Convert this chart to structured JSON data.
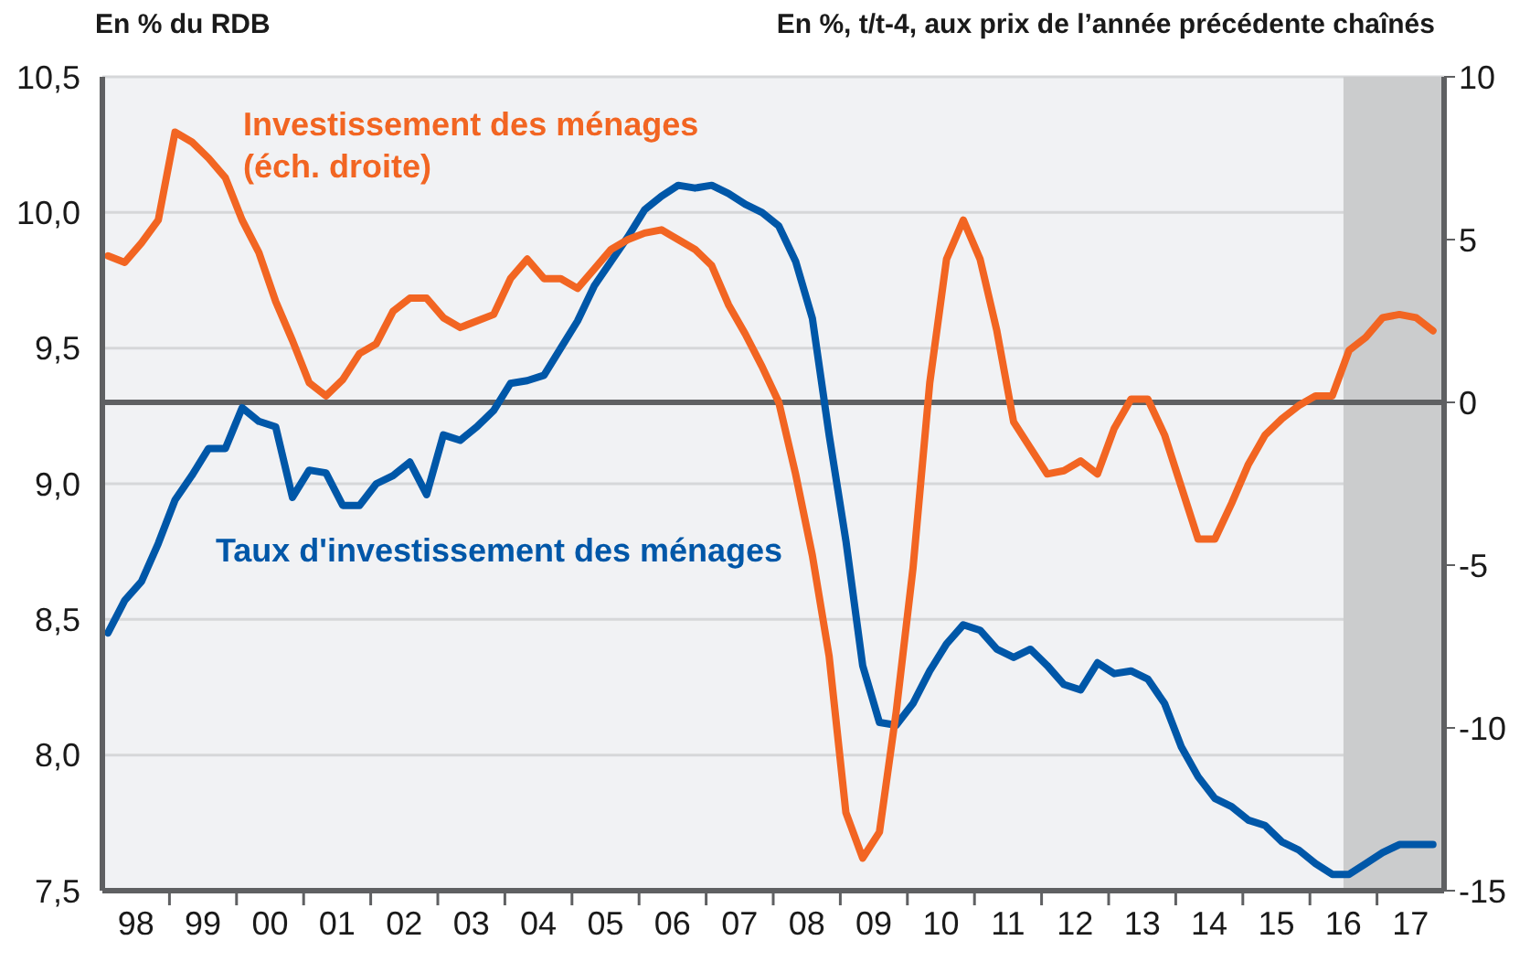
{
  "chart_data": {
    "type": "line",
    "ylabel": "En % du RDB",
    "y2label": "En %, t/t-4, aux prix de l’année précédente chaînés",
    "x": [
      "1998-02",
      "1998-05",
      "1998-08",
      "1998-11",
      "1999-02",
      "1999-05",
      "1999-08",
      "1999-11",
      "2000-02",
      "2000-05",
      "2000-08",
      "2000-11",
      "2001-02",
      "2001-05",
      "2001-08",
      "2001-11",
      "2002-02",
      "2002-05",
      "2002-08",
      "2002-11",
      "2003-02",
      "2003-05",
      "2003-08",
      "2003-11",
      "2004-02",
      "2004-05",
      "2004-08",
      "2004-11",
      "2005-02",
      "2005-05",
      "2005-08",
      "2005-11",
      "2006-02",
      "2006-05",
      "2006-08",
      "2006-11",
      "2007-02",
      "2007-05",
      "2007-08",
      "2007-11",
      "2008-02",
      "2008-05",
      "2008-08",
      "2008-11",
      "2009-02",
      "2009-05",
      "2009-08",
      "2009-11",
      "2010-02",
      "2010-05",
      "2010-08",
      "2010-11",
      "2011-02",
      "2011-05",
      "2011-08",
      "2011-11",
      "2012-02",
      "2012-05",
      "2012-08",
      "2012-11",
      "2013-02",
      "2013-05",
      "2013-08",
      "2013-11",
      "2014-02",
      "2014-05",
      "2014-08",
      "2014-11",
      "2015-02",
      "2015-05",
      "2015-08",
      "2015-11",
      "2016-02",
      "2016-05",
      "2016-08",
      "2016-11",
      "2017-02",
      "2017-05",
      "2017-08",
      "2017-11"
    ],
    "series": [
      {
        "name": "Taux d'investissement des ménages",
        "color": "#0057a8",
        "values": [
          8.45,
          8.57,
          8.64,
          8.78,
          8.94,
          9.03,
          9.13,
          9.13,
          9.28,
          9.23,
          9.21,
          8.95,
          9.05,
          9.04,
          8.92,
          8.92,
          9.0,
          9.03,
          9.08,
          8.96,
          9.18,
          9.16,
          9.21,
          9.27,
          9.37,
          9.38,
          9.4,
          9.5,
          9.6,
          9.73,
          9.82,
          9.91,
          10.01,
          10.06,
          10.1,
          10.09,
          10.1,
          10.07,
          10.03,
          10.0,
          9.95,
          9.82,
          9.61,
          9.18,
          8.79,
          8.33,
          8.12,
          8.11,
          8.19,
          8.31,
          8.41,
          8.48,
          8.46,
          8.39,
          8.36,
          8.39,
          8.33,
          8.26,
          8.24,
          8.34,
          8.3,
          8.31,
          8.28,
          8.19,
          8.03,
          7.92,
          7.84,
          7.81,
          7.76,
          7.74,
          7.68,
          7.65,
          7.6,
          7.56,
          7.56,
          7.6,
          7.64,
          7.67,
          7.67,
          7.67
        ]
      },
      {
        "name": "Investissement des ménages (éch. droite)",
        "color": "#f26522",
        "axis": "y2",
        "values": [
          4.5,
          4.3,
          4.9,
          5.6,
          8.3,
          8.0,
          7.5,
          6.9,
          5.6,
          4.6,
          3.1,
          1.9,
          0.6,
          0.2,
          0.7,
          1.5,
          1.8,
          2.8,
          3.2,
          3.2,
          2.6,
          2.3,
          2.5,
          2.7,
          3.8,
          4.4,
          3.8,
          3.8,
          3.5,
          4.1,
          4.7,
          5.0,
          5.2,
          5.3,
          5.0,
          4.7,
          4.2,
          3.0,
          2.1,
          1.1,
          0.0,
          -2.2,
          -4.7,
          -7.8,
          -12.6,
          -14.0,
          -13.2,
          -9.5,
          -5.1,
          0.6,
          4.4,
          5.6,
          4.4,
          2.2,
          -0.6,
          -1.4,
          -2.2,
          -2.1,
          -1.8,
          -2.2,
          -0.8,
          0.1,
          0.1,
          -1.0,
          -2.6,
          -4.2,
          -4.2,
          -3.1,
          -1.9,
          -1.0,
          -0.5,
          -0.1,
          0.2,
          0.2,
          1.6,
          2.0,
          2.6,
          2.7,
          2.6,
          2.2
        ]
      }
    ],
    "xlim": [
      "1998",
      "2018"
    ],
    "xticks": [
      {
        "value": "1998-07",
        "label": "98"
      },
      {
        "value": "1999",
        "label": null
      },
      {
        "value": "1999-07",
        "label": "99"
      },
      {
        "value": "2000",
        "label": null
      },
      {
        "value": "2000-07",
        "label": "00"
      },
      {
        "value": "2001",
        "label": null
      },
      {
        "value": "2001-07",
        "label": "01"
      },
      {
        "value": "2002",
        "label": null
      },
      {
        "value": "2002-07",
        "label": "02"
      },
      {
        "value": "2003",
        "label": null
      },
      {
        "value": "2003-07",
        "label": "03"
      },
      {
        "value": "2004",
        "label": null
      },
      {
        "value": "2004-07",
        "label": "04"
      },
      {
        "value": "2005",
        "label": null
      },
      {
        "value": "2005-07",
        "label": "05"
      },
      {
        "value": "2006",
        "label": null
      },
      {
        "value": "2006-07",
        "label": "06"
      },
      {
        "value": "2007",
        "label": null
      },
      {
        "value": "2007-07",
        "label": "07"
      },
      {
        "value": "2008",
        "label": null
      },
      {
        "value": "2008-07",
        "label": "08"
      },
      {
        "value": "2009",
        "label": null
      },
      {
        "value": "2009-07",
        "label": "09"
      },
      {
        "value": "2010",
        "label": null
      },
      {
        "value": "2010-07",
        "label": "10"
      },
      {
        "value": "2011",
        "label": null
      },
      {
        "value": "2011-07",
        "label": "11"
      },
      {
        "value": "2012",
        "label": null
      },
      {
        "value": "2012-07",
        "label": "12"
      },
      {
        "value": "2013",
        "label": null
      },
      {
        "value": "2013-07",
        "label": "13"
      },
      {
        "value": "2014",
        "label": null
      },
      {
        "value": "2014-07",
        "label": "14"
      },
      {
        "value": "2015",
        "label": null
      },
      {
        "value": "2015-07",
        "label": "15"
      },
      {
        "value": "2016",
        "label": null
      },
      {
        "value": "2016-07",
        "label": "16"
      },
      {
        "value": "2017",
        "label": null
      },
      {
        "value": "2017-07",
        "label": "17"
      }
    ],
    "ylim": [
      7.5,
      10.5
    ],
    "yticks": [
      {
        "value": 7.5,
        "label": "7,5"
      },
      {
        "value": 8.0,
        "label": "8,0"
      },
      {
        "value": 8.5,
        "label": "8,5"
      },
      {
        "value": 9.0,
        "label": "9,0"
      },
      {
        "value": 9.5,
        "label": "9,5"
      },
      {
        "value": 10.0,
        "label": "10,0"
      },
      {
        "value": 10.5,
        "label": "10,5"
      }
    ],
    "y2lim": [
      -15,
      10
    ],
    "y2ticks": [
      -15,
      -10,
      -5,
      0,
      5,
      10
    ],
    "ref_lines": [
      {
        "axis": "y2",
        "value": 0,
        "color": "#5f6062"
      }
    ],
    "bands": [
      {
        "axis": "x",
        "from": "2016-07",
        "to": "2018",
        "color": "#cbcccd"
      }
    ],
    "grid": "y",
    "legend": false,
    "line_style": "solid"
  }
}
